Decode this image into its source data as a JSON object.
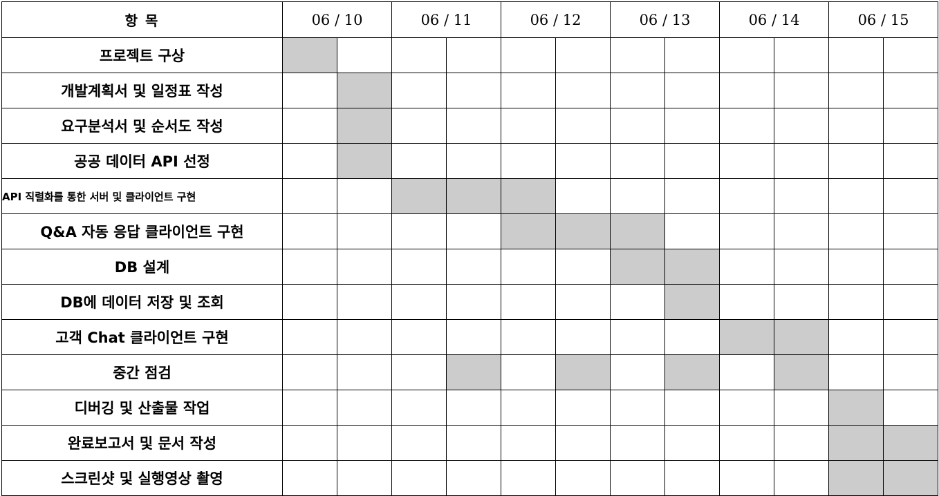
{
  "header": {
    "item_label": "항 목",
    "dates": [
      "06 / 10",
      "06 / 11",
      "06 / 12",
      "06 / 13",
      "06 / 14",
      "06 / 15"
    ]
  },
  "colors": {
    "filled": "#cccccc",
    "border": "#000000",
    "background": "#ffffff"
  },
  "tasks": [
    {
      "name": "프로젝트 구상",
      "filled_slots": [
        0
      ]
    },
    {
      "name": "개발계획서 및 일정표 작성",
      "filled_slots": [
        1
      ]
    },
    {
      "name": "요구분석서  및 순서도 작성",
      "filled_slots": [
        1
      ]
    },
    {
      "name": "공공 데이터 API 선정",
      "filled_slots": [
        1
      ]
    },
    {
      "name": "API 직렬화를 통한 서버 및 클라이언트 구현",
      "filled_slots": [
        2,
        3,
        4
      ],
      "small": true
    },
    {
      "name": "Q&A  자동 응답 클라이언트 구현",
      "filled_slots": [
        4,
        5,
        6
      ]
    },
    {
      "name": "DB 설계",
      "filled_slots": [
        6,
        7
      ]
    },
    {
      "name": "DB에 데이터 저장 및 조회",
      "filled_slots": [
        7
      ]
    },
    {
      "name": "고객 Chat 클라이언트 구현",
      "filled_slots": [
        8,
        9
      ]
    },
    {
      "name": "중간 점검",
      "filled_slots": [
        3,
        5,
        7,
        9
      ]
    },
    {
      "name": "디버깅 및 산출물 작업",
      "filled_slots": [
        10
      ]
    },
    {
      "name": "완료보고서 및 문서 작성",
      "filled_slots": [
        10,
        11
      ]
    },
    {
      "name": "스크린샷 및 실행영상 촬영",
      "filled_slots": [
        10,
        11
      ]
    }
  ]
}
